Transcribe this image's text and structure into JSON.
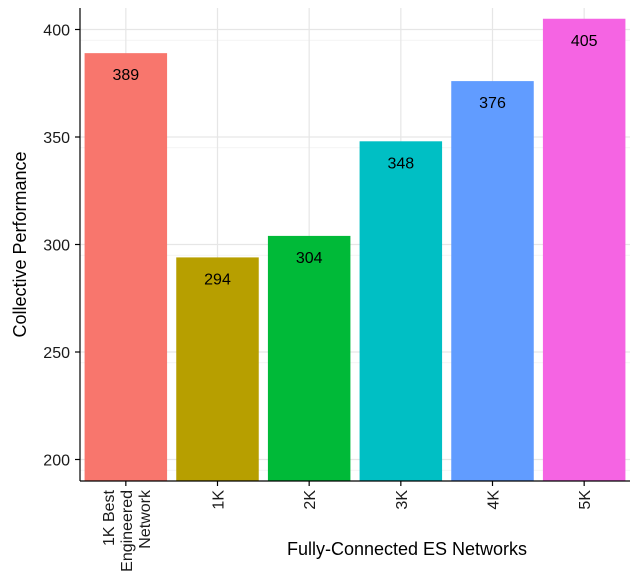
{
  "chart_data": {
    "type": "bar",
    "categories": [
      "1K Best Engineered Network",
      "1K",
      "2K",
      "3K",
      "4K",
      "5K"
    ],
    "category_lines": [
      [
        "1K Best",
        "Engineered",
        "Network"
      ],
      [
        "1K"
      ],
      [
        "2K"
      ],
      [
        "3K"
      ],
      [
        "4K"
      ],
      [
        "5K"
      ]
    ],
    "values": [
      389,
      294,
      304,
      348,
      376,
      405
    ],
    "value_labels": [
      "389",
      "294",
      "304",
      "348",
      "376",
      "405"
    ],
    "colors": [
      "#F8766D",
      "#B79F00",
      "#00BA38",
      "#00BFC4",
      "#619CFF",
      "#F564E3"
    ],
    "xlabel": "Fully-Connected ES Networks",
    "ylabel": "Collective Performance",
    "ylim": [
      190,
      410
    ],
    "yticks": [
      200,
      250,
      300,
      350,
      400
    ],
    "grid": true,
    "legend": "none"
  }
}
